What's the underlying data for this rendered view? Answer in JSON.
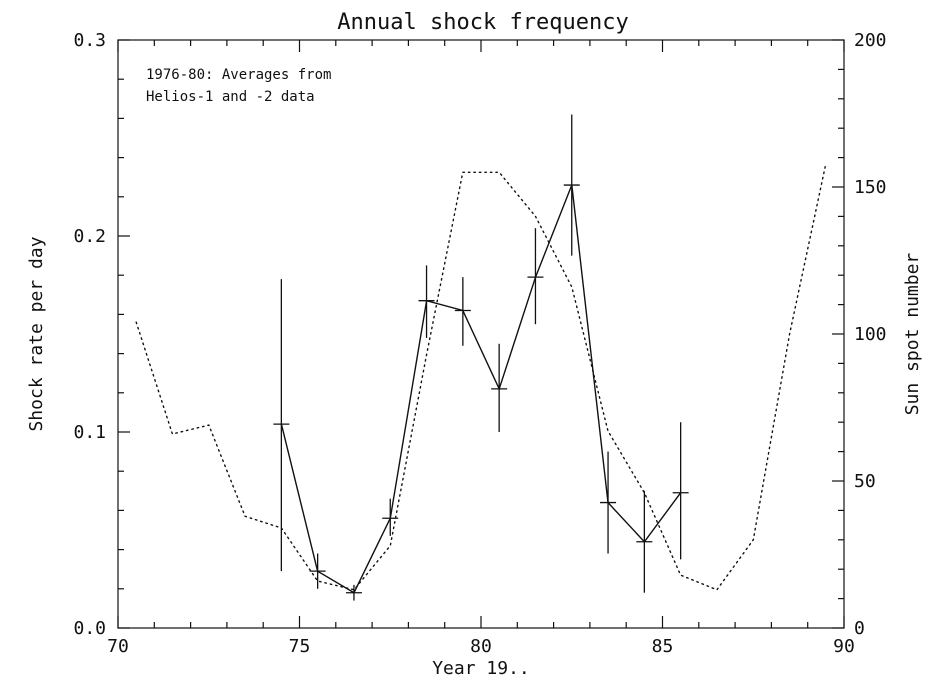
{
  "chart_data": {
    "type": "line",
    "title": "Annual shock frequency",
    "xlabel": "Year 19..",
    "ylabel": "Shock rate per day",
    "y2label": "Sun spot number",
    "xlim": [
      70,
      90
    ],
    "ylim": [
      0.0,
      0.3
    ],
    "y2lim": [
      0,
      200
    ],
    "x_ticks": [
      70,
      75,
      80,
      85,
      90
    ],
    "y_ticks": [
      0.0,
      0.1,
      0.2,
      0.3
    ],
    "y2_ticks": [
      0,
      50,
      100,
      150,
      200
    ],
    "x_tick_labels": [
      "70",
      "75",
      "80",
      "85",
      "90"
    ],
    "y_tick_labels": [
      "0.0",
      "0.1",
      "0.2",
      "0.3"
    ],
    "y2_tick_labels": [
      "0",
      "50",
      "100",
      "150",
      "200"
    ],
    "annotation": [
      "1976-80: Averages from",
      "Helios-1 and -2 data"
    ],
    "grid": false,
    "series": [
      {
        "style": "solid line with error bars",
        "axis": "left",
        "x": [
          74.5,
          75.5,
          76.5,
          77.5,
          78.5,
          79.5,
          80.5,
          81.5,
          82.5,
          83.5,
          84.5,
          85.5
        ],
        "y": [
          0.104,
          0.029,
          0.018,
          0.056,
          0.167,
          0.162,
          0.122,
          0.179,
          0.226,
          0.064,
          0.044,
          0.069
        ],
        "err_low": [
          0.029,
          0.02,
          0.014,
          0.047,
          0.148,
          0.144,
          0.1,
          0.155,
          0.19,
          0.038,
          0.018,
          0.035
        ],
        "err_high": [
          0.178,
          0.038,
          0.022,
          0.066,
          0.185,
          0.179,
          0.145,
          0.204,
          0.262,
          0.09,
          0.07,
          0.105
        ]
      },
      {
        "style": "dotted line",
        "axis": "right",
        "x": [
          70.5,
          71.5,
          72.5,
          73.5,
          74.5,
          75.5,
          76.5,
          77.5,
          78.5,
          79.5,
          80.5,
          81.5,
          82.5,
          83.5,
          84.5,
          85.5,
          86.5,
          87.5,
          88.5,
          89.5
        ],
        "y": [
          104,
          66,
          69,
          38,
          34,
          16,
          13,
          28,
          93,
          155,
          155,
          140,
          116,
          67,
          46,
          18,
          13,
          30,
          100,
          158
        ]
      }
    ]
  }
}
